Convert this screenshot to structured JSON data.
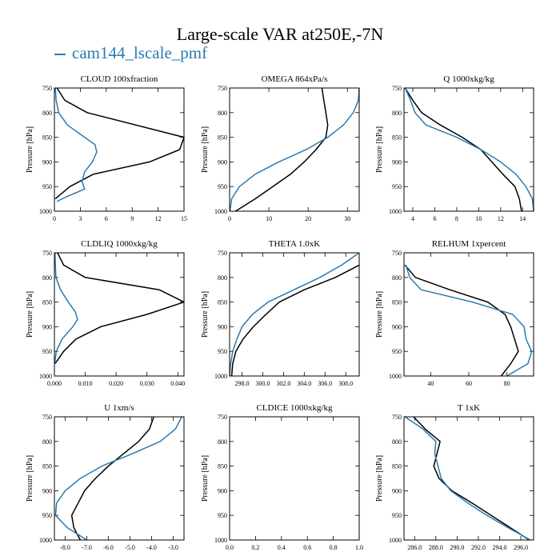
{
  "figure": {
    "title": "Large-scale VAR at250E,-7N",
    "legend_label": "cam144_lscale_pmf",
    "colors": {
      "obs": "#000000",
      "model": "#2b7bb0"
    }
  },
  "chart_data": [
    {
      "type": "line",
      "title": "CLOUD 100xfraction",
      "ylabel": "Pressure [hPa]",
      "ylim": [
        1000,
        750
      ],
      "xlim": [
        0,
        15
      ],
      "xticks": [
        0,
        3,
        6,
        9,
        12,
        15
      ],
      "xticklabels": [
        "0",
        "3",
        "6",
        "9",
        "12",
        "15"
      ],
      "yticks": [
        750,
        800,
        850,
        900,
        950,
        1000
      ],
      "series": [
        {
          "color": "#000000",
          "y": [
            750,
            775,
            800,
            850,
            875,
            900,
            925,
            950,
            975
          ],
          "x": [
            0.3,
            1.2,
            3.8,
            15,
            14.5,
            11,
            4.5,
            1.8,
            0.1
          ]
        },
        {
          "color": "#2b7bb0",
          "y": [
            750,
            775,
            800,
            825,
            850,
            865,
            880,
            900,
            920,
            940,
            955,
            970,
            980
          ],
          "x": [
            0.1,
            0.2,
            0.5,
            1.5,
            3.5,
            4.7,
            4.9,
            4.4,
            3.5,
            3.2,
            3.5,
            1.5,
            0.3
          ]
        }
      ]
    },
    {
      "type": "line",
      "title": "OMEGA  864xPa/s",
      "ylabel": "Pressure [hPa]",
      "ylim": [
        1000,
        750
      ],
      "xlim": [
        0,
        33
      ],
      "xticks": [
        0,
        10,
        20,
        30
      ],
      "xticklabels": [
        "0",
        "10",
        "20",
        "30"
      ],
      "yticks": [
        750,
        800,
        850,
        900,
        950,
        1000
      ],
      "series": [
        {
          "color": "#000000",
          "y": [
            750,
            775,
            800,
            825,
            850,
            875,
            900,
            925,
            950,
            975,
            1000
          ],
          "x": [
            23.5,
            24,
            24.5,
            25,
            24.5,
            22,
            19,
            15.5,
            11,
            6.5,
            1.5
          ]
        },
        {
          "color": "#2b7bb0",
          "y": [
            750,
            775,
            800,
            825,
            850,
            875,
            900,
            925,
            950,
            975,
            1000
          ],
          "x": [
            33,
            32.8,
            31.5,
            29,
            25,
            19.5,
            12.5,
            6.5,
            2.5,
            0.5,
            0.1
          ]
        }
      ]
    },
    {
      "type": "line",
      "title": "Q  1000xkg/kg",
      "ylabel": "Pressure [hPa]",
      "ylim": [
        1000,
        750
      ],
      "xlim": [
        3.2,
        15
      ],
      "xticks": [
        4,
        6,
        8,
        10,
        12,
        14
      ],
      "xticklabels": [
        "4",
        "6",
        "8",
        "10",
        "12",
        "14"
      ],
      "yticks": [
        750,
        800,
        850,
        900,
        950,
        1000
      ],
      "series": [
        {
          "color": "#000000",
          "y": [
            750,
            775,
            800,
            825,
            850,
            875,
            900,
            925,
            950,
            975,
            1000
          ],
          "x": [
            3.3,
            4,
            4.8,
            6.5,
            8.5,
            10.2,
            11.2,
            12.2,
            13.3,
            13.7,
            13.9
          ]
        },
        {
          "color": "#2b7bb0",
          "y": [
            750,
            775,
            800,
            825,
            850,
            875,
            900,
            925,
            950,
            975,
            1000
          ],
          "x": [
            3.3,
            3.8,
            4.2,
            5.2,
            8,
            10.2,
            12,
            13.4,
            14.3,
            14.9,
            15
          ]
        }
      ]
    },
    {
      "type": "line",
      "title": "CLDLIQ  1000xkg/kg",
      "ylabel": "Pressure [hPa]",
      "ylim": [
        1000,
        750
      ],
      "xlim": [
        0,
        0.042
      ],
      "xticks": [
        0,
        0.01,
        0.02,
        0.03,
        0.04
      ],
      "xticklabels": [
        "0.000",
        "0.010",
        "0.020",
        "0.030",
        "0.040"
      ],
      "yticks": [
        750,
        800,
        850,
        900,
        950,
        1000
      ],
      "series": [
        {
          "color": "#000000",
          "y": [
            750,
            775,
            800,
            825,
            850,
            875,
            900,
            925,
            950,
            975
          ],
          "x": [
            0.001,
            0.003,
            0.01,
            0.034,
            0.042,
            0.03,
            0.015,
            0.007,
            0.003,
            0.0002
          ]
        },
        {
          "color": "#2b7bb0",
          "y": [
            750,
            775,
            800,
            825,
            850,
            870,
            885,
            900,
            925,
            950,
            975
          ],
          "x": [
            0.0002,
            0.0003,
            0.0005,
            0.002,
            0.0045,
            0.0068,
            0.0075,
            0.006,
            0.0025,
            0.0006,
            0.0001
          ]
        }
      ]
    },
    {
      "type": "line",
      "title": "THETA  1.0xK",
      "ylabel": "Pressure [hPa]",
      "ylim": [
        1000,
        750
      ],
      "xlim": [
        296.8,
        309.3
      ],
      "xticks": [
        298,
        300,
        302,
        304,
        306,
        308
      ],
      "xticklabels": [
        "298.0",
        "300.0",
        "302.0",
        "304.0",
        "306.0",
        "308.0"
      ],
      "yticks": [
        750,
        800,
        850,
        900,
        950,
        1000
      ],
      "series": [
        {
          "color": "#000000",
          "y": [
            775,
            800,
            825,
            850,
            875,
            900,
            925,
            950,
            975,
            1000
          ],
          "x": [
            309.3,
            307,
            304,
            301.6,
            300.3,
            299.1,
            298.1,
            297.4,
            297.1,
            297
          ]
        },
        {
          "color": "#2b7bb0",
          "y": [
            750,
            775,
            800,
            825,
            850,
            875,
            900,
            925,
            950,
            975,
            1000
          ],
          "x": [
            309.3,
            307.6,
            305.5,
            303,
            300.5,
            299,
            298,
            297.5,
            297.1,
            296.9,
            296.8
          ]
        }
      ]
    },
    {
      "type": "line",
      "title": "RELHUM  1xpercent",
      "ylabel": "Pressure [hPa]",
      "ylim": [
        1000,
        750
      ],
      "xlim": [
        26,
        94
      ],
      "xticks": [
        40,
        60,
        80
      ],
      "xticklabels": [
        "40",
        "60",
        "80"
      ],
      "yticks": [
        750,
        800,
        850,
        900,
        950,
        1000
      ],
      "series": [
        {
          "color": "#000000",
          "y": [
            775,
            800,
            825,
            850,
            875,
            900,
            925,
            950,
            975,
            1000
          ],
          "x": [
            26.5,
            32,
            50,
            70,
            79,
            82,
            84,
            86,
            82,
            77
          ]
        },
        {
          "color": "#2b7bb0",
          "y": [
            775,
            800,
            825,
            850,
            875,
            900,
            925,
            950,
            975,
            1000
          ],
          "x": [
            27,
            29,
            35,
            62,
            83,
            89,
            90,
            93,
            91,
            80
          ]
        }
      ]
    },
    {
      "type": "line",
      "title": "U  1xm/s",
      "ylabel": "Pressure [hPa]",
      "ylim": [
        1000,
        750
      ],
      "xlim": [
        -8.5,
        -2.5
      ],
      "xticks": [
        -8,
        -7,
        -6,
        -5,
        -4,
        -3
      ],
      "xticklabels": [
        "-8.0",
        "-7.0",
        "-6.0",
        "-5.0",
        "-4.0",
        "-3.0"
      ],
      "yticks": [
        750,
        800,
        850,
        900,
        950,
        1000
      ],
      "series": [
        {
          "color": "#000000",
          "y": [
            750,
            775,
            800,
            825,
            850,
            875,
            900,
            925,
            950,
            975,
            1000
          ],
          "x": [
            -3.9,
            -4.1,
            -4.6,
            -5.3,
            -6,
            -6.6,
            -7.1,
            -7.4,
            -7.7,
            -7.6,
            -7.3
          ]
        },
        {
          "color": "#2b7bb0",
          "y": [
            750,
            775,
            800,
            825,
            850,
            875,
            900,
            925,
            950,
            975,
            1000
          ],
          "x": [
            -2.6,
            -2.9,
            -3.6,
            -4.9,
            -6.3,
            -7.3,
            -8,
            -8.4,
            -8.45,
            -7.9,
            -7
          ]
        }
      ]
    },
    {
      "type": "line",
      "title": "CLDICE  1000xkg/kg",
      "ylabel": "Pressure [hPa]",
      "ylim": [
        1000,
        750
      ],
      "xlim": [
        0,
        1
      ],
      "xticks": [
        0,
        0.2,
        0.4,
        0.6,
        0.8,
        1
      ],
      "xticklabels": [
        "0.0",
        "0.2",
        "0.4",
        "0.6",
        "0.8",
        "1.0"
      ],
      "yticks": [
        750,
        800,
        850,
        900,
        950,
        1000
      ],
      "series": []
    },
    {
      "type": "line",
      "title": "T  1xK",
      "ylabel": "Pressure [hPa]",
      "ylim": [
        1000,
        750
      ],
      "xlim": [
        285,
        297.2
      ],
      "xticks": [
        286,
        288,
        290,
        292,
        294,
        296
      ],
      "xticklabels": [
        "286.0",
        "288.0",
        "290.0",
        "292.0",
        "294.0",
        "296.0"
      ],
      "yticks": [
        750,
        800,
        850,
        900,
        950,
        1000
      ],
      "series": [
        {
          "color": "#000000",
          "y": [
            750,
            775,
            800,
            825,
            850,
            875,
            900,
            925,
            950,
            975,
            1000
          ],
          "x": [
            285.9,
            287,
            288.4,
            288.1,
            287.8,
            288.3,
            289.5,
            291.4,
            293.2,
            295,
            296.8
          ]
        },
        {
          "color": "#2b7bb0",
          "y": [
            750,
            775,
            800,
            825,
            850,
            875,
            900,
            925,
            950,
            975,
            1000
          ],
          "x": [
            285.1,
            286.8,
            288,
            287.9,
            288.2,
            288.5,
            289.4,
            291,
            292.8,
            294.8,
            296.9
          ]
        }
      ]
    }
  ]
}
